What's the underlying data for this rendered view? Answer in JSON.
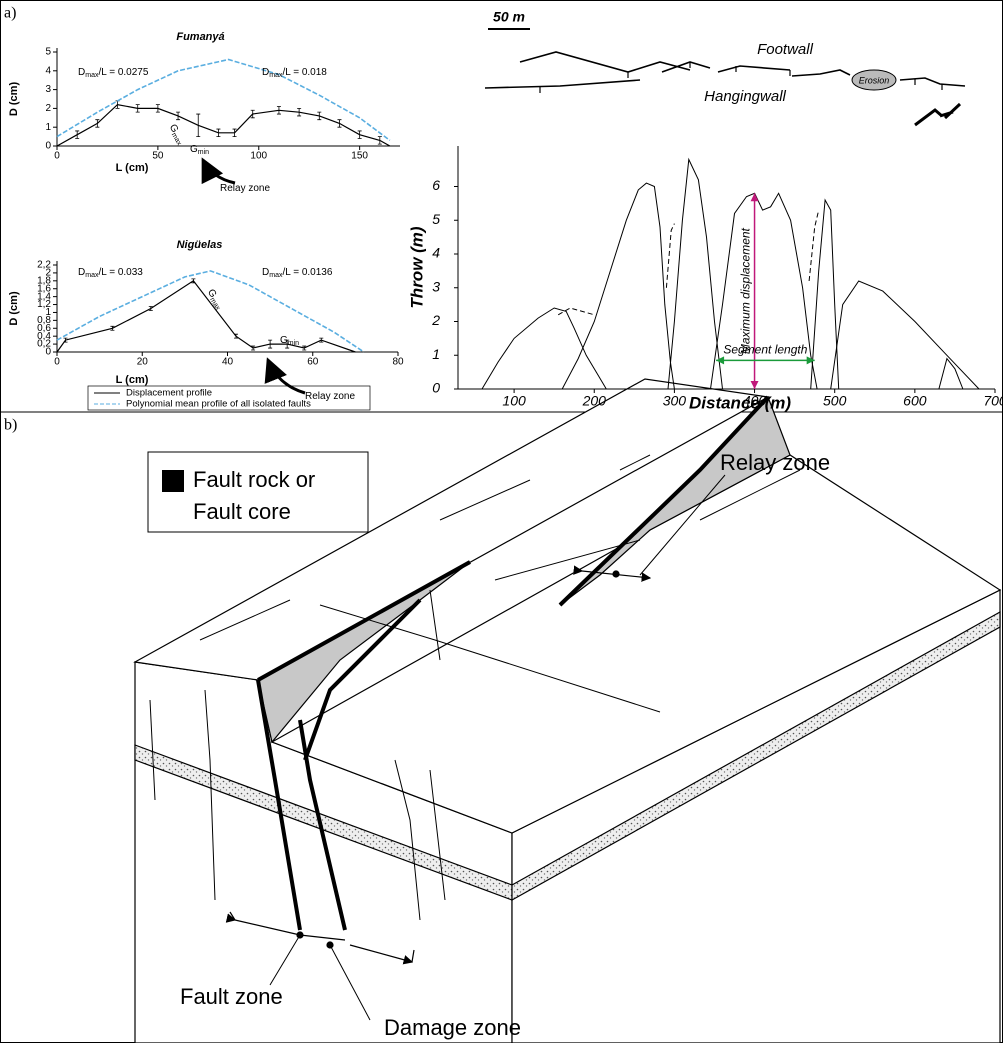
{
  "panel_labels": {
    "a": "a)",
    "b": "b)"
  },
  "chart_data": [
    {
      "type": "line",
      "title": "Fumanyá",
      "x_label": "L (cm)",
      "y_label": "D (cm)",
      "xlim": [
        0,
        170
      ],
      "ylim": [
        0,
        5
      ],
      "xticks": [
        0,
        50,
        100,
        150
      ],
      "yticks": [
        0,
        1,
        2,
        3,
        4,
        5
      ],
      "series": [
        {
          "name": "Displacement profile",
          "color": "#000000",
          "style": "solid",
          "x": [
            0,
            10,
            20,
            30,
            40,
            50,
            60,
            70,
            80,
            88,
            97,
            110,
            120,
            130,
            140,
            150,
            160,
            165
          ],
          "values": [
            0,
            0.6,
            1.2,
            2.2,
            2.0,
            2.0,
            1.6,
            1.1,
            0.7,
            0.7,
            1.7,
            1.9,
            1.8,
            1.6,
            1.2,
            0.6,
            0.3,
            0
          ],
          "errors": [
            0,
            0.2,
            0.2,
            0.2,
            0.2,
            0.2,
            0.2,
            0.6,
            0.2,
            0.2,
            0.2,
            0.2,
            0.2,
            0.2,
            0.2,
            0.2,
            0.2,
            0
          ]
        },
        {
          "name": "Polynomial mean profile of all isolated faults",
          "color": "#5aaee0",
          "style": "dashed",
          "x": [
            0,
            20,
            40,
            60,
            85,
            110,
            130,
            150,
            165
          ],
          "values": [
            0.5,
            1.8,
            3.0,
            4.0,
            4.6,
            3.8,
            2.7,
            1.5,
            0.3
          ]
        }
      ],
      "annotations": [
        {
          "main": "D",
          "sub": "max",
          "rest": "/L = 0.0275"
        },
        {
          "main": "D",
          "sub": "max",
          "rest": "/L = 0.018"
        },
        {
          "main": "G",
          "sub": "max"
        },
        {
          "main": "G",
          "sub": "min"
        },
        {
          "text": "Relay zone"
        }
      ]
    },
    {
      "type": "line",
      "title": "Nigüelas",
      "x_label": "L (cm)",
      "y_label": "D (cm)",
      "xlim": [
        0,
        80
      ],
      "ylim": [
        0,
        2.2
      ],
      "xticks": [
        0,
        20,
        40,
        60,
        80
      ],
      "yticks": [
        0,
        {
          "value": 0.2,
          "label": "0,2"
        },
        {
          "value": 0.4,
          "label": "0,4"
        },
        {
          "value": 0.6,
          "label": "0,6"
        },
        {
          "value": 0.8,
          "label": "0,8"
        },
        1,
        {
          "value": 1.2,
          "label": "1,2"
        },
        {
          "value": 1.4,
          "label": "1,4"
        },
        {
          "value": 1.6,
          "label": "1,6"
        },
        {
          "value": 1.8,
          "label": "1,8"
        },
        2,
        {
          "value": 2.2,
          "label": "2,2"
        }
      ],
      "series": [
        {
          "color": "#000000",
          "style": "solid",
          "x": [
            0,
            2,
            13,
            22,
            32,
            42,
            46,
            50,
            54,
            58,
            62,
            70
          ],
          "values": [
            0,
            0.3,
            0.6,
            1.1,
            1.8,
            0.4,
            0.1,
            0.2,
            0.2,
            0.1,
            0.3,
            0
          ],
          "errors": [
            0,
            0.05,
            0.05,
            0.05,
            0.05,
            0.05,
            0.05,
            0.1,
            0.1,
            0.05,
            0.05,
            0
          ]
        },
        {
          "color": "#5aaee0",
          "style": "dashed",
          "x": [
            0,
            10,
            20,
            30,
            36,
            45,
            55,
            65,
            72
          ],
          "values": [
            0.3,
            0.9,
            1.4,
            1.9,
            2.05,
            1.7,
            1.1,
            0.5,
            0
          ]
        }
      ],
      "annotations": [
        {
          "main": "D",
          "sub": "max",
          "rest": "/L = 0.033"
        },
        {
          "main": "D",
          "sub": "max",
          "rest": "/L = 0.0136"
        },
        {
          "main": "G",
          "sub": "max"
        },
        {
          "main": "G",
          "sub": "min"
        },
        {
          "text": "Relay zone"
        }
      ]
    },
    {
      "type": "line",
      "x_label": "Distance (m)",
      "y_label": "Throw (m)",
      "xlim": [
        30,
        700
      ],
      "ylim": [
        0,
        7.2
      ],
      "xticks": [
        100,
        200,
        300,
        400,
        500,
        600,
        700
      ],
      "yticks": [
        0,
        1,
        2,
        3,
        4,
        5,
        6
      ],
      "series": [
        {
          "color": "#000000",
          "style": "solid",
          "x": [
            60,
            80,
            100,
            130,
            150,
            165,
            175,
            190,
            205,
            215
          ],
          "values": [
            0,
            0.8,
            1.5,
            2.1,
            2.4,
            2.3,
            1.8,
            1.0,
            0.4,
            0
          ]
        },
        {
          "color": "#000000",
          "style": "solid",
          "x": [
            160,
            180,
            200,
            220,
            240,
            255,
            265,
            275,
            282,
            288,
            295,
            300
          ],
          "values": [
            0,
            0.9,
            2.0,
            3.5,
            5.0,
            5.9,
            6.1,
            6.0,
            4.8,
            2.5,
            0.8,
            0
          ]
        },
        {
          "color": "#000000",
          "style": "solid",
          "x": [
            292,
            300,
            310,
            318,
            330,
            340,
            350,
            360
          ],
          "values": [
            0,
            2,
            5,
            6.8,
            6.2,
            4.5,
            2.0,
            0
          ]
        },
        {
          "color": "#000000",
          "style": "solid",
          "x": [
            345,
            360,
            375,
            390,
            400,
            410,
            420,
            430,
            445,
            460,
            470,
            478
          ],
          "values": [
            0,
            2.5,
            5.2,
            5.7,
            5.8,
            5.3,
            5.4,
            5.8,
            5.0,
            3,
            1,
            0
          ]
        },
        {
          "color": "#000000",
          "style": "solid",
          "x": [
            470,
            480,
            488,
            495,
            500,
            505
          ],
          "values": [
            0,
            3.5,
            5.6,
            5.3,
            2.5,
            0
          ]
        },
        {
          "color": "#000000",
          "style": "solid",
          "x": [
            495,
            510,
            530,
            560,
            600,
            640,
            680
          ],
          "values": [
            0,
            2.5,
            3.2,
            2.9,
            2.0,
            1.0,
            0
          ]
        },
        {
          "color": "#000000",
          "style": "solid",
          "x": [
            630,
            640,
            650,
            660
          ],
          "values": [
            0,
            0.9,
            0.6,
            0
          ]
        },
        {
          "color": "#000000",
          "style": "dashed",
          "x": [
            155,
            170,
            185,
            200
          ],
          "values": [
            2.2,
            2.4,
            2.3,
            2.2
          ]
        },
        {
          "color": "#000000",
          "style": "dashed",
          "x": [
            290,
            296,
            300
          ],
          "values": [
            3.0,
            4.7,
            4.9
          ]
        },
        {
          "color": "#000000",
          "style": "dashed",
          "x": [
            468,
            475,
            480
          ],
          "values": [
            3.2,
            4.8,
            5.3
          ]
        }
      ],
      "max_displacement": {
        "label": "Maximum displacement",
        "x": 400,
        "value": 5.8,
        "color": "#c0187a"
      },
      "segment_length": {
        "label": "Segment length",
        "x": [
          352,
          475
        ],
        "y": 0.85,
        "color": "#1a9a3a"
      }
    }
  ],
  "map": {
    "scale": "50 m",
    "footwall": "Footwall",
    "hangingwall": "Hangingwall",
    "erosion": "Erosion"
  },
  "diagram": {
    "legend": [
      "Fault rock or",
      "Fault core"
    ],
    "relay_zone": "Relay zone",
    "fault_zone": "Fault zone",
    "damage_zone": "Damage zone"
  }
}
